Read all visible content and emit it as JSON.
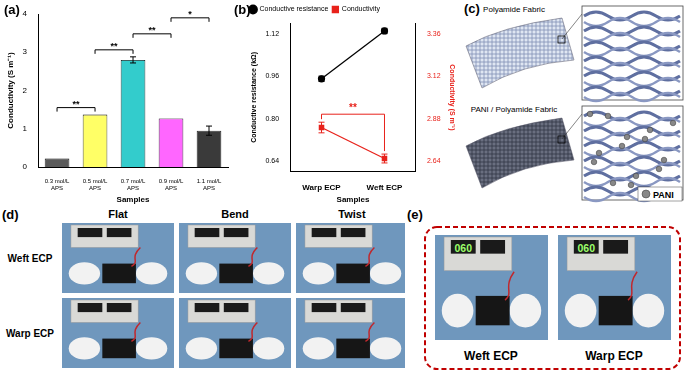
{
  "chart_data": [
    {
      "label": "(a)",
      "type": "bar",
      "x_label": "Samples",
      "y_label": "Conductivity (S m⁻¹)",
      "categories": [
        "0.3 mol/L APS",
        "0.5 mol/L APS",
        "0.7 mol/L APS",
        "0.9 mol/L APS",
        "1.1 mol/L APS"
      ],
      "values": [
        0.22,
        1.37,
        2.8,
        1.27,
        0.95
      ],
      "errors": [
        0,
        0,
        0.08,
        0,
        0.12
      ],
      "colors": [
        "#5a5a5a",
        "#ffff66",
        "#33cccc",
        "#ff66ff",
        "#3a3a3a"
      ],
      "ylim": [
        0,
        4
      ],
      "yticks": [
        0,
        1,
        2,
        3,
        4
      ],
      "grid": false,
      "annotations": [
        {
          "text": "**",
          "between": [
            "0.3 mol/L APS",
            "0.5 mol/L APS"
          ]
        },
        {
          "text": "**",
          "between": [
            "0.5 mol/L APS",
            "0.7 mol/L APS"
          ]
        },
        {
          "text": "**",
          "between": [
            "0.7 mol/L APS",
            "0.9 mol/L APS"
          ]
        },
        {
          "text": "*",
          "between": [
            "0.9 mol/L APS",
            "1.1 mol/L APS"
          ]
        }
      ]
    },
    {
      "label": "(b)",
      "type": "line",
      "x_label": "Samples",
      "y_label": "Conductive resistance (kΩ)",
      "y2_label": "Conductivity (S m⁻¹)",
      "categories": [
        "Warp ECP",
        "Weft ECP"
      ],
      "series": [
        {
          "name": "Conductive resistance",
          "color": "#000000",
          "values": [
            0.95,
            1.13
          ],
          "errors": [
            0.01,
            0.01
          ],
          "marker": "circle"
        },
        {
          "name": "Conductivity",
          "color": "#e8221b",
          "values": [
            2.83,
            2.655
          ],
          "errors": [
            0.03,
            0.025
          ],
          "marker": "square",
          "axis": "y2"
        }
      ],
      "ylim": [
        0.6,
        1.16
      ],
      "yticks": [
        0.64,
        {
          "value": 0.8,
          "label": "0.80"
        },
        0.96,
        1.12
      ],
      "y2lim": [
        2.58,
        3.42
      ],
      "y2ticks": [
        2.64,
        2.88,
        3.12,
        3.36
      ],
      "grid": false,
      "legend": "top-left",
      "annotations": [
        {
          "text": "**",
          "series": "Conductivity"
        }
      ]
    }
  ],
  "panel_c": {
    "label": "(c)",
    "top": "Polyamide Fabric",
    "bottom": "PANI / Polyamide Fabric",
    "particle": "PANI"
  },
  "panel_d": {
    "label": "(d)",
    "columns": [
      "Flat",
      "Bend",
      "Twist"
    ],
    "rows": [
      "Weft ECP",
      "Warp ECP"
    ]
  },
  "panel_e": {
    "label": "(e)",
    "photos": [
      {
        "caption": "Weft ECP",
        "display": "060"
      },
      {
        "caption": "Warp ECP",
        "display": "060"
      }
    ]
  }
}
